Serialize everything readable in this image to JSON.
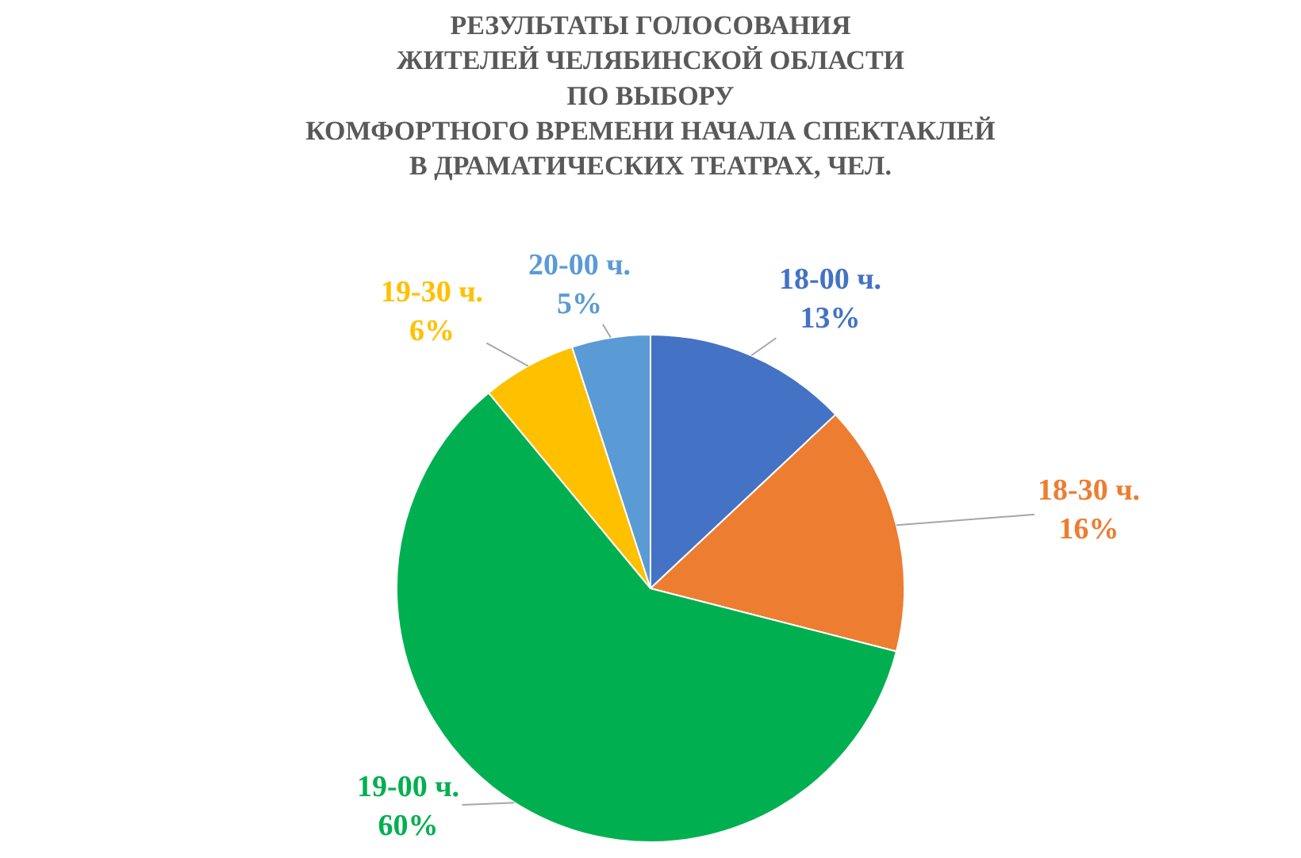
{
  "chart_data": {
    "type": "pie",
    "title": "РЕЗУЛЬТАТЫ ГОЛОСОВАНИЯ\nЖИТЕЛЕЙ ЧЕЛЯБИНСКОЙ ОБЛАСТИ\nПО ВЫБОРУ\nКОМФОРТНОГО ВРЕМЕНИ НАЧАЛА СПЕКТАКЛЕЙ\nВ ДРАМАТИЧЕСКИХ ТЕАТРАХ, ЧЕЛ.",
    "categories": [
      "18-00 ч.",
      "18-30 ч.",
      "19-00 ч.",
      "19-30 ч.",
      "20-00 ч."
    ],
    "values": [
      13,
      16,
      60,
      6,
      5
    ],
    "value_labels": [
      "13%",
      "16%",
      "60%",
      "6%",
      "5%"
    ],
    "colors": [
      "#4472c4",
      "#ed7d31",
      "#00b050",
      "#ffc000",
      "#5b9bd5"
    ],
    "legend": false
  }
}
